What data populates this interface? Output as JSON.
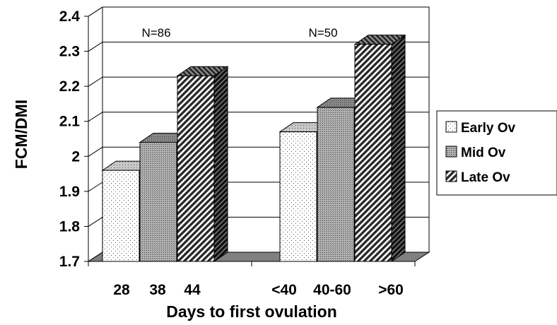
{
  "chart_data": {
    "type": "bar",
    "style": "3d",
    "ylabel": "FCM/DMI",
    "xlabel": "Days to first ovulation",
    "ylim": [
      1.7,
      2.4
    ],
    "yticks": [
      "1.7",
      "1.8",
      "1.9",
      "2",
      "2.1",
      "2.2",
      "2.3",
      "2.4"
    ],
    "ytick_values": [
      1.7,
      1.8,
      1.9,
      2.0,
      2.1,
      2.2,
      2.3,
      2.4
    ],
    "grid": true,
    "legend_position": "right",
    "groups": [
      {
        "annotation": "N=86",
        "categories": [
          "28",
          "38",
          "44"
        ],
        "values": [
          1.96,
          2.04,
          2.23
        ]
      },
      {
        "annotation": "N=50",
        "categories": [
          "<40",
          "40-60",
          ">60"
        ],
        "values": [
          2.07,
          2.14,
          2.32
        ]
      }
    ],
    "series": [
      {
        "name": "Early Ov",
        "pattern": "dots"
      },
      {
        "name": "Mid Ov",
        "pattern": "dense-dots"
      },
      {
        "name": "Late Ov",
        "pattern": "diagonal-stripes"
      }
    ]
  }
}
